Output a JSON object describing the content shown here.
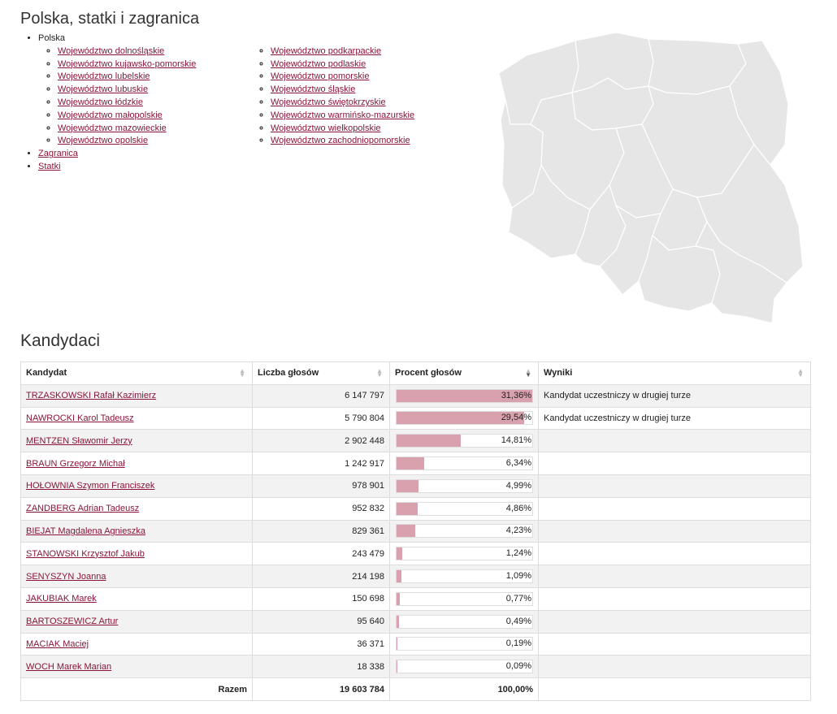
{
  "header": {
    "title": "Polska, statki i zagranica"
  },
  "nav": {
    "root_label": "Polska",
    "voivodeships_col1": [
      "Województwo dolnośląskie",
      "Województwo kujawsko-pomorskie",
      "Województwo lubelskie",
      "Województwo lubuskie",
      "Województwo łódzkie",
      "Województwo małopolskie",
      "Województwo mazowieckie",
      "Województwo opolskie"
    ],
    "voivodeships_col2": [
      "Województwo podkarpackie",
      "Województwo podlaskie",
      "Województwo pomorskie",
      "Województwo śląskie",
      "Województwo świętokrzyskie",
      "Województwo warmińsko-mazurskie",
      "Województwo wielkopolskie",
      "Województwo zachodniopomorskie"
    ],
    "abroad": "Zagranica",
    "ships": "Statki"
  },
  "map": {
    "fill_color": "#e6e6e6",
    "stroke_color": "#ffffff"
  },
  "candidates": {
    "title": "Kandydaci",
    "columns": [
      "Kandydat",
      "Liczba głosów",
      "Procent głosów",
      "Wyniki"
    ],
    "rows": [
      {
        "name": "TRZASKOWSKI Rafał Kazimierz",
        "votes": "6 147 797",
        "percent_label": "31,36%",
        "percent": 31.36,
        "result": "Kandydat uczestniczy w drugiej turze"
      },
      {
        "name": "NAWROCKI Karol Tadeusz",
        "votes": "5 790 804",
        "percent_label": "29,54%",
        "percent": 29.54,
        "result": "Kandydat uczestniczy w drugiej turze"
      },
      {
        "name": "MENTZEN Sławomir Jerzy",
        "votes": "2 902 448",
        "percent_label": "14,81%",
        "percent": 14.81,
        "result": ""
      },
      {
        "name": "BRAUN Grzegorz Michał",
        "votes": "1 242 917",
        "percent_label": "6,34%",
        "percent": 6.34,
        "result": ""
      },
      {
        "name": "HOŁOWNIA Szymon Franciszek",
        "votes": "978 901",
        "percent_label": "4,99%",
        "percent": 4.99,
        "result": ""
      },
      {
        "name": "ZANDBERG Adrian Tadeusz",
        "votes": "952 832",
        "percent_label": "4,86%",
        "percent": 4.86,
        "result": ""
      },
      {
        "name": "BIEJAT Magdalena Agnieszka",
        "votes": "829 361",
        "percent_label": "4,23%",
        "percent": 4.23,
        "result": ""
      },
      {
        "name": "STANOWSKI Krzysztof Jakub",
        "votes": "243 479",
        "percent_label": "1,24%",
        "percent": 1.24,
        "result": ""
      },
      {
        "name": "SENYSZYN Joanna",
        "votes": "214 198",
        "percent_label": "1,09%",
        "percent": 1.09,
        "result": ""
      },
      {
        "name": "JAKUBIAK Marek",
        "votes": "150 698",
        "percent_label": "0,77%",
        "percent": 0.77,
        "result": ""
      },
      {
        "name": "BARTOSZEWICZ Artur",
        "votes": "95 640",
        "percent_label": "0,49%",
        "percent": 0.49,
        "result": ""
      },
      {
        "name": "MACIAK Maciej",
        "votes": "36 371",
        "percent_label": "0,19%",
        "percent": 0.19,
        "result": ""
      },
      {
        "name": "WOCH Marek Marian",
        "votes": "18 338",
        "percent_label": "0,09%",
        "percent": 0.09,
        "result": ""
      }
    ],
    "total_label": "Razem",
    "total_votes": "19 603 784",
    "total_percent": "100,00%",
    "bar_color": "#d9a0ad",
    "bar_scale_max": 31.36
  }
}
